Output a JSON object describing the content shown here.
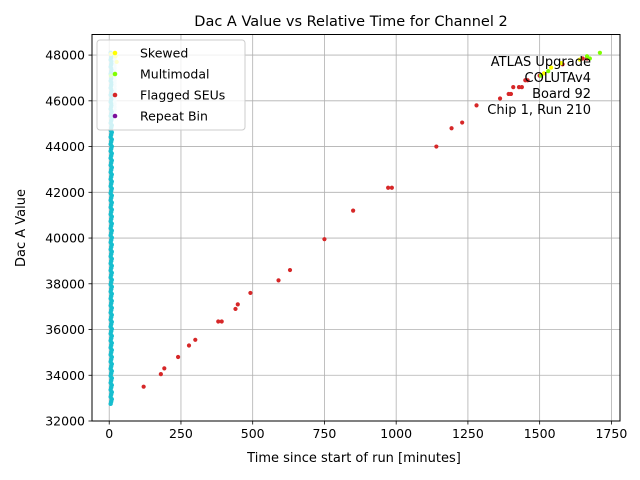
{
  "chart_data": {
    "type": "scatter",
    "title": "Dac A Value vs Relative Time for Channel 2",
    "xlabel": "Time since start of run [minutes]",
    "ylabel": "Dac A Value",
    "xlim": [
      -60,
      1780
    ],
    "ylim": [
      32000,
      48900
    ],
    "xticks": [
      0,
      250,
      500,
      750,
      1000,
      1250,
      1500,
      1750
    ],
    "yticks": [
      32000,
      34000,
      36000,
      38000,
      40000,
      42000,
      44000,
      46000,
      48000
    ],
    "grid": true,
    "legend_position": "top-left",
    "annotation": [
      "ATLAS Upgrade",
      "COLUTAv4",
      "Board 92",
      "Chip 1, Run 210"
    ],
    "series": [
      {
        "name": "Skewed",
        "color": "#ffff00",
        "points": [
          [
            6,
            48050
          ],
          [
            22,
            47950
          ],
          [
            26,
            47700
          ],
          [
            1515,
            47200
          ],
          [
            1540,
            47450
          ],
          [
            1575,
            47650
          ],
          [
            1640,
            47800
          ]
        ]
      },
      {
        "name": "Multimodal",
        "color": "#7fff00",
        "points": [
          [
            6,
            47100
          ],
          [
            1505,
            47100
          ],
          [
            1530,
            47300
          ],
          [
            1665,
            47950
          ],
          [
            1675,
            47850
          ],
          [
            1710,
            48100
          ]
        ]
      },
      {
        "name": "Flagged SEUs",
        "color": "#d62728",
        "points": [
          [
            120,
            33500
          ],
          [
            180,
            34050
          ],
          [
            192,
            34300
          ],
          [
            240,
            34800
          ],
          [
            278,
            35300
          ],
          [
            300,
            35550
          ],
          [
            380,
            36350
          ],
          [
            392,
            36350
          ],
          [
            440,
            36900
          ],
          [
            448,
            37100
          ],
          [
            492,
            37600
          ],
          [
            590,
            38150
          ],
          [
            630,
            38600
          ],
          [
            750,
            39950
          ],
          [
            850,
            41200
          ],
          [
            972,
            42200
          ],
          [
            985,
            42200
          ],
          [
            1140,
            44000
          ],
          [
            1193,
            44800
          ],
          [
            1230,
            45050
          ],
          [
            1280,
            45800
          ],
          [
            1362,
            46100
          ],
          [
            1392,
            46300
          ],
          [
            1400,
            46300
          ],
          [
            1408,
            46600
          ],
          [
            1428,
            46600
          ],
          [
            1438,
            46600
          ],
          [
            1450,
            46900
          ],
          [
            1458,
            46900
          ],
          [
            1500,
            47100
          ],
          [
            1580,
            47600
          ],
          [
            1650,
            47850
          ],
          [
            1665,
            47850
          ]
        ]
      },
      {
        "name": "Repeat Bin",
        "color": "#7b0f9b",
        "points": []
      },
      {
        "name": "",
        "color": "#17becf",
        "points": [
          [
            5,
            32750
          ],
          [
            20,
            48100
          ],
          [
            20,
            48050
          ]
        ]
      }
    ]
  }
}
